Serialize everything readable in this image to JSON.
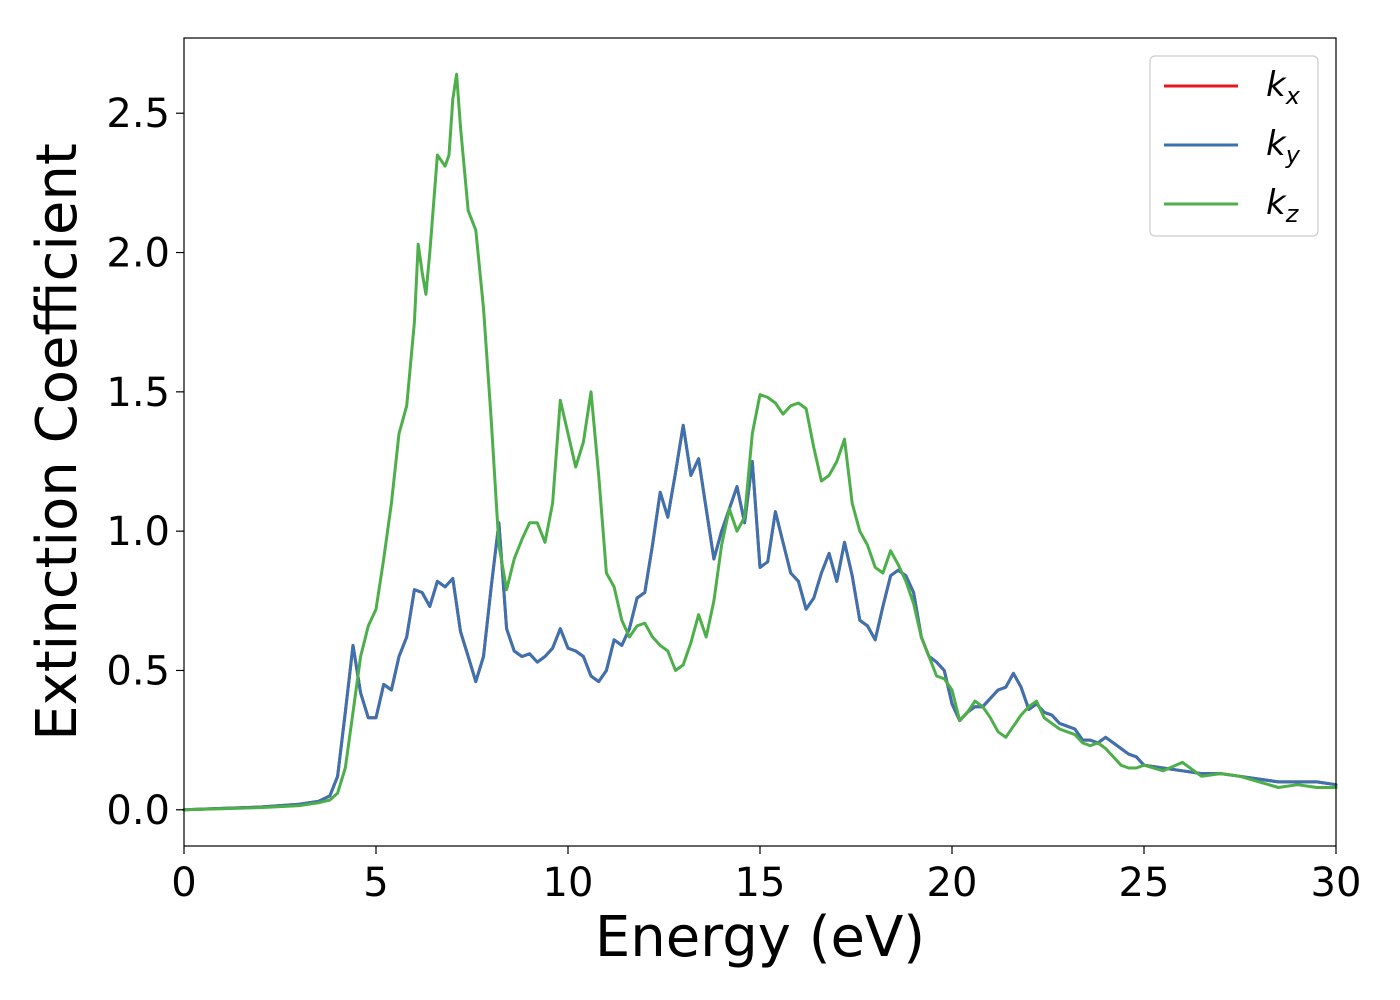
{
  "chart_data": {
    "type": "line",
    "xlabel": "Energy (eV)",
    "ylabel": "Extinction Coefficient",
    "xlim": [
      0,
      30
    ],
    "ylim": [
      -0.13,
      2.77
    ],
    "xticks": [
      "0",
      "5",
      "10",
      "15",
      "20",
      "25",
      "30"
    ],
    "yticks": [
      "0.0",
      "0.5",
      "1.0",
      "1.5",
      "2.0",
      "2.5"
    ],
    "grid": false,
    "legend_position": "top-right",
    "series": [
      {
        "name": "k_x",
        "legend_base": "k",
        "legend_sub": "x",
        "color": "#e41a1c",
        "x": [
          0,
          1,
          2,
          3,
          3.5,
          3.8,
          4.0,
          4.2,
          4.4,
          4.6,
          4.8,
          5.0,
          5.2,
          5.4,
          5.6,
          5.8,
          6.0,
          6.2,
          6.4,
          6.6,
          6.8,
          7.0,
          7.2,
          7.4,
          7.6,
          7.8,
          8.0,
          8.2,
          8.4,
          8.6,
          8.8,
          9.0,
          9.2,
          9.4,
          9.6,
          9.8,
          10.0,
          10.2,
          10.4,
          10.6,
          10.8,
          11.0,
          11.2,
          11.4,
          11.6,
          11.8,
          12.0,
          12.2,
          12.4,
          12.6,
          12.8,
          13.0,
          13.2,
          13.4,
          13.6,
          13.8,
          14.0,
          14.2,
          14.4,
          14.6,
          14.8,
          15.0,
          15.2,
          15.4,
          15.6,
          15.8,
          16.0,
          16.2,
          16.4,
          16.6,
          16.8,
          17.0,
          17.2,
          17.4,
          17.6,
          17.8,
          18.0,
          18.2,
          18.4,
          18.6,
          18.8,
          19.0,
          19.2,
          19.4,
          19.6,
          19.8,
          20.0,
          20.2,
          20.4,
          20.6,
          20.8,
          21.0,
          21.2,
          21.4,
          21.6,
          21.8,
          22.0,
          22.2,
          22.4,
          22.6,
          22.8,
          23.0,
          23.2,
          23.4,
          23.6,
          23.8,
          24.0,
          24.2,
          24.4,
          24.6,
          24.8,
          25.0,
          25.5,
          26.0,
          26.5,
          27.0,
          27.5,
          28.0,
          28.5,
          29.0,
          29.5,
          30.0
        ],
        "y": [
          0,
          0.005,
          0.01,
          0.02,
          0.03,
          0.05,
          0.12,
          0.35,
          0.59,
          0.42,
          0.33,
          0.33,
          0.45,
          0.43,
          0.55,
          0.62,
          0.79,
          0.78,
          0.73,
          0.82,
          0.8,
          0.83,
          0.64,
          0.55,
          0.46,
          0.55,
          0.8,
          1.03,
          0.65,
          0.57,
          0.55,
          0.56,
          0.53,
          0.55,
          0.58,
          0.65,
          0.58,
          0.57,
          0.55,
          0.48,
          0.46,
          0.5,
          0.61,
          0.59,
          0.65,
          0.76,
          0.78,
          0.95,
          1.14,
          1.05,
          1.21,
          1.38,
          1.2,
          1.26,
          1.08,
          0.9,
          1.0,
          1.08,
          1.16,
          1.03,
          1.25,
          0.87,
          0.89,
          1.07,
          0.96,
          0.85,
          0.82,
          0.72,
          0.76,
          0.85,
          0.92,
          0.82,
          0.96,
          0.84,
          0.68,
          0.66,
          0.61,
          0.73,
          0.84,
          0.86,
          0.84,
          0.78,
          0.62,
          0.55,
          0.53,
          0.5,
          0.38,
          0.32,
          0.35,
          0.37,
          0.37,
          0.4,
          0.43,
          0.44,
          0.49,
          0.44,
          0.36,
          0.38,
          0.35,
          0.34,
          0.31,
          0.3,
          0.29,
          0.25,
          0.25,
          0.24,
          0.26,
          0.24,
          0.22,
          0.2,
          0.19,
          0.16,
          0.15,
          0.14,
          0.13,
          0.13,
          0.12,
          0.11,
          0.1,
          0.1,
          0.1,
          0.09
        ],
        "visible_under_other_lines": true
      },
      {
        "name": "k_y",
        "legend_base": "k",
        "legend_sub": "y",
        "color": "#3b72b0",
        "x": [
          0,
          1,
          2,
          3,
          3.5,
          3.8,
          4.0,
          4.2,
          4.4,
          4.6,
          4.8,
          5.0,
          5.2,
          5.4,
          5.6,
          5.8,
          6.0,
          6.2,
          6.4,
          6.6,
          6.8,
          7.0,
          7.2,
          7.4,
          7.6,
          7.8,
          8.0,
          8.2,
          8.4,
          8.6,
          8.8,
          9.0,
          9.2,
          9.4,
          9.6,
          9.8,
          10.0,
          10.2,
          10.4,
          10.6,
          10.8,
          11.0,
          11.2,
          11.4,
          11.6,
          11.8,
          12.0,
          12.2,
          12.4,
          12.6,
          12.8,
          13.0,
          13.2,
          13.4,
          13.6,
          13.8,
          14.0,
          14.2,
          14.4,
          14.6,
          14.8,
          15.0,
          15.2,
          15.4,
          15.6,
          15.8,
          16.0,
          16.2,
          16.4,
          16.6,
          16.8,
          17.0,
          17.2,
          17.4,
          17.6,
          17.8,
          18.0,
          18.2,
          18.4,
          18.6,
          18.8,
          19.0,
          19.2,
          19.4,
          19.6,
          19.8,
          20.0,
          20.2,
          20.4,
          20.6,
          20.8,
          21.0,
          21.2,
          21.4,
          21.6,
          21.8,
          22.0,
          22.2,
          22.4,
          22.6,
          22.8,
          23.0,
          23.2,
          23.4,
          23.6,
          23.8,
          24.0,
          24.2,
          24.4,
          24.6,
          24.8,
          25.0,
          25.5,
          26.0,
          26.5,
          27.0,
          27.5,
          28.0,
          28.5,
          29.0,
          29.5,
          30.0
        ],
        "y": [
          0,
          0.005,
          0.01,
          0.02,
          0.03,
          0.05,
          0.12,
          0.35,
          0.59,
          0.42,
          0.33,
          0.33,
          0.45,
          0.43,
          0.55,
          0.62,
          0.79,
          0.78,
          0.73,
          0.82,
          0.8,
          0.83,
          0.64,
          0.55,
          0.46,
          0.55,
          0.8,
          1.03,
          0.65,
          0.57,
          0.55,
          0.56,
          0.53,
          0.55,
          0.58,
          0.65,
          0.58,
          0.57,
          0.55,
          0.48,
          0.46,
          0.5,
          0.61,
          0.59,
          0.65,
          0.76,
          0.78,
          0.95,
          1.14,
          1.05,
          1.21,
          1.38,
          1.2,
          1.26,
          1.08,
          0.9,
          1.0,
          1.08,
          1.16,
          1.03,
          1.25,
          0.87,
          0.89,
          1.07,
          0.96,
          0.85,
          0.82,
          0.72,
          0.76,
          0.85,
          0.92,
          0.82,
          0.96,
          0.84,
          0.68,
          0.66,
          0.61,
          0.73,
          0.84,
          0.86,
          0.84,
          0.78,
          0.62,
          0.55,
          0.53,
          0.5,
          0.38,
          0.32,
          0.35,
          0.37,
          0.37,
          0.4,
          0.43,
          0.44,
          0.49,
          0.44,
          0.36,
          0.38,
          0.35,
          0.34,
          0.31,
          0.3,
          0.29,
          0.25,
          0.25,
          0.24,
          0.26,
          0.24,
          0.22,
          0.2,
          0.19,
          0.16,
          0.15,
          0.14,
          0.13,
          0.13,
          0.12,
          0.11,
          0.1,
          0.1,
          0.1,
          0.09
        ]
      },
      {
        "name": "k_z",
        "legend_base": "k",
        "legend_sub": "z",
        "color": "#4daf4a",
        "x": [
          0,
          1,
          2,
          3,
          3.5,
          3.8,
          4.0,
          4.2,
          4.4,
          4.6,
          4.8,
          5.0,
          5.2,
          5.4,
          5.6,
          5.8,
          6.0,
          6.1,
          6.2,
          6.3,
          6.4,
          6.6,
          6.8,
          6.9,
          7.0,
          7.1,
          7.2,
          7.4,
          7.6,
          7.8,
          8.0,
          8.2,
          8.4,
          8.6,
          8.8,
          9.0,
          9.2,
          9.4,
          9.6,
          9.8,
          10.0,
          10.2,
          10.4,
          10.6,
          10.8,
          11.0,
          11.2,
          11.4,
          11.6,
          11.8,
          12.0,
          12.2,
          12.4,
          12.6,
          12.8,
          13.0,
          13.2,
          13.4,
          13.6,
          13.8,
          14.0,
          14.2,
          14.4,
          14.6,
          14.8,
          15.0,
          15.2,
          15.4,
          15.6,
          15.8,
          16.0,
          16.2,
          16.4,
          16.6,
          16.8,
          17.0,
          17.2,
          17.4,
          17.6,
          17.8,
          18.0,
          18.2,
          18.4,
          18.6,
          18.8,
          19.0,
          19.2,
          19.4,
          19.6,
          19.8,
          20.0,
          20.2,
          20.4,
          20.6,
          20.8,
          21.0,
          21.2,
          21.4,
          21.6,
          21.8,
          22.0,
          22.2,
          22.4,
          22.6,
          22.8,
          23.0,
          23.2,
          23.4,
          23.6,
          23.8,
          24.0,
          24.2,
          24.4,
          24.6,
          24.8,
          25.0,
          25.5,
          26.0,
          26.5,
          27.0,
          27.5,
          28.0,
          28.5,
          29.0,
          29.5,
          30.0
        ],
        "y": [
          0,
          0.004,
          0.008,
          0.015,
          0.025,
          0.035,
          0.06,
          0.15,
          0.35,
          0.55,
          0.66,
          0.72,
          0.9,
          1.1,
          1.35,
          1.45,
          1.75,
          2.03,
          1.93,
          1.85,
          2.0,
          2.35,
          2.31,
          2.35,
          2.55,
          2.64,
          2.45,
          2.15,
          2.08,
          1.8,
          1.4,
          0.95,
          0.79,
          0.9,
          0.97,
          1.03,
          1.03,
          0.96,
          1.1,
          1.47,
          1.35,
          1.23,
          1.32,
          1.5,
          1.2,
          0.85,
          0.8,
          0.68,
          0.62,
          0.66,
          0.67,
          0.62,
          0.59,
          0.57,
          0.5,
          0.52,
          0.6,
          0.7,
          0.62,
          0.75,
          0.95,
          1.08,
          1.0,
          1.05,
          1.35,
          1.49,
          1.48,
          1.46,
          1.42,
          1.45,
          1.46,
          1.44,
          1.3,
          1.18,
          1.2,
          1.25,
          1.33,
          1.1,
          1.0,
          0.95,
          0.87,
          0.85,
          0.93,
          0.88,
          0.82,
          0.74,
          0.62,
          0.55,
          0.48,
          0.47,
          0.43,
          0.32,
          0.35,
          0.39,
          0.37,
          0.33,
          0.28,
          0.26,
          0.3,
          0.34,
          0.37,
          0.39,
          0.33,
          0.31,
          0.29,
          0.28,
          0.27,
          0.24,
          0.23,
          0.24,
          0.22,
          0.19,
          0.16,
          0.15,
          0.15,
          0.16,
          0.14,
          0.17,
          0.12,
          0.13,
          0.12,
          0.1,
          0.08,
          0.09,
          0.08,
          0.08
        ]
      }
    ]
  }
}
